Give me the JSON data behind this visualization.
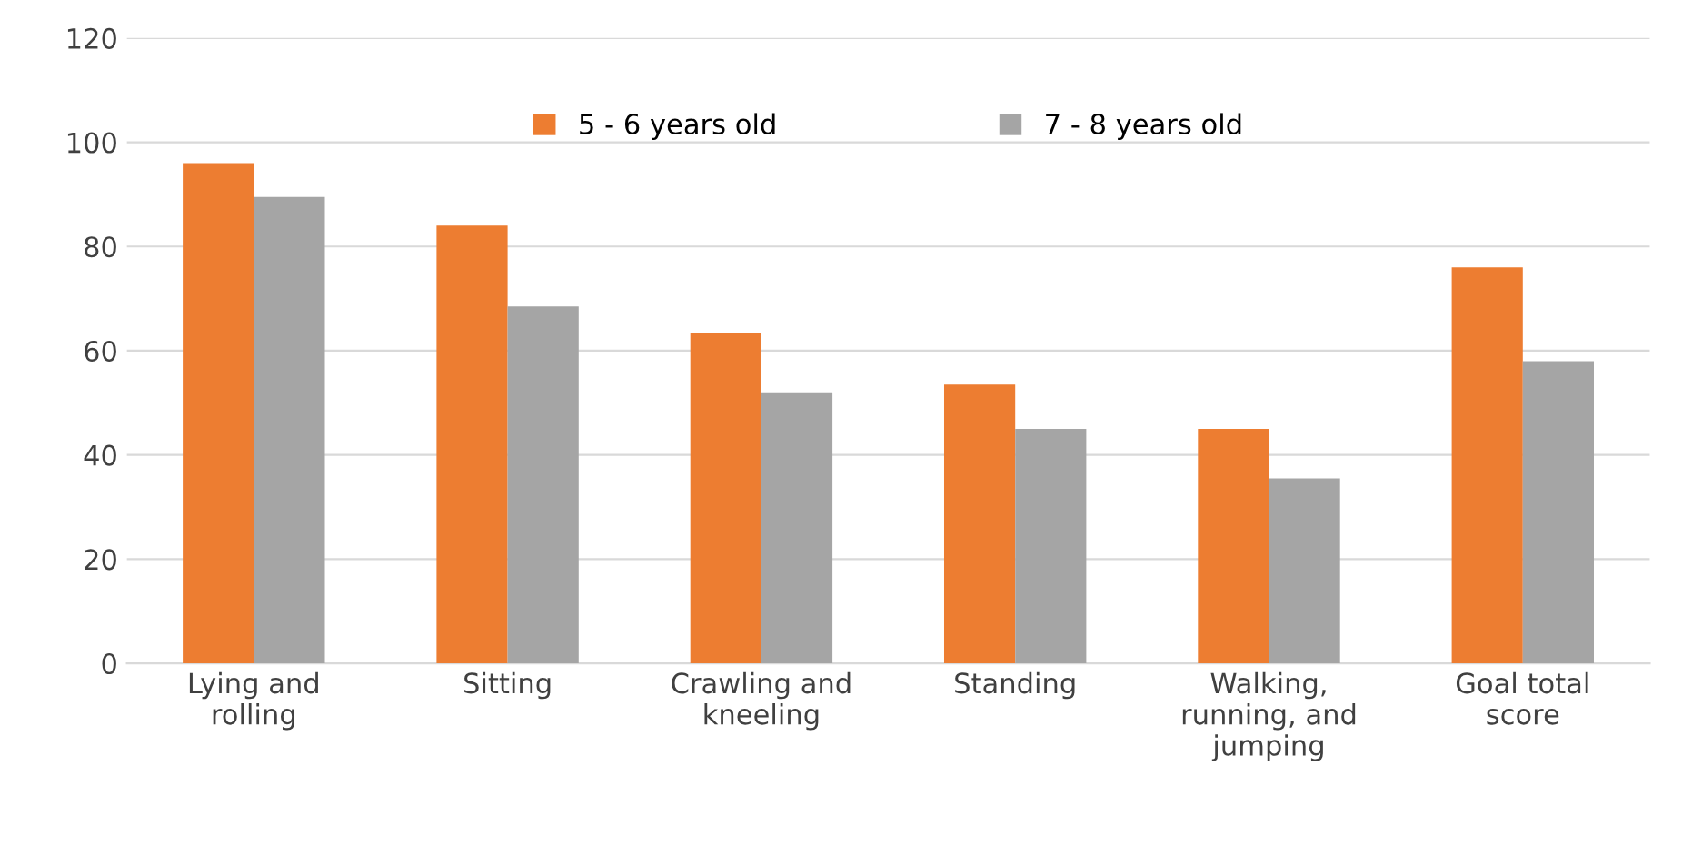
{
  "chart_data": {
    "type": "bar",
    "categories": [
      "Lying and\nrolling",
      "Sitting",
      "Crawling and\nkneeling",
      "Standing",
      "Walking,\nrunning, and\njumping",
      "Goal total\nscore"
    ],
    "series": [
      {
        "name": "5 - 6 years old",
        "color": "#ed7d31",
        "values": [
          96,
          84,
          63.5,
          53.5,
          45,
          76
        ]
      },
      {
        "name": "7 - 8 years old",
        "color": "#a5a5a5",
        "values": [
          89.5,
          68.5,
          52,
          45,
          35.5,
          58
        ]
      }
    ],
    "ylim": [
      0,
      120
    ],
    "yticks": [
      0,
      20,
      40,
      60,
      80,
      100,
      120
    ],
    "grid": "y",
    "legend": "top"
  }
}
